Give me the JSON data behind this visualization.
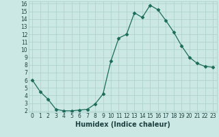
{
  "xlabel": "Humidex (Indice chaleur)",
  "x_values": [
    0,
    1,
    2,
    3,
    4,
    5,
    6,
    7,
    8,
    9,
    10,
    11,
    12,
    13,
    14,
    15,
    16,
    17,
    18,
    19,
    20,
    21,
    22,
    23
  ],
  "y_values": [
    6.0,
    4.5,
    3.5,
    2.2,
    2.0,
    2.0,
    2.1,
    2.2,
    2.9,
    4.2,
    8.5,
    11.5,
    12.0,
    14.8,
    14.2,
    15.8,
    15.2,
    13.8,
    12.3,
    10.5,
    9.0,
    8.2,
    7.8,
    7.7
  ],
  "line_color": "#1a6b5a",
  "marker": "D",
  "marker_size": 2.5,
  "bg_color": "#cce8e4",
  "grid_color": "#aacfca",
  "tick_label_color": "#1a4040",
  "ylim": [
    1.8,
    16.3
  ],
  "xlim": [
    -0.5,
    23.5
  ],
  "yticks": [
    2,
    3,
    4,
    5,
    6,
    7,
    8,
    9,
    10,
    11,
    12,
    13,
    14,
    15,
    16
  ],
  "xticks": [
    0,
    1,
    2,
    3,
    4,
    5,
    6,
    7,
    8,
    9,
    10,
    11,
    12,
    13,
    14,
    15,
    16,
    17,
    18,
    19,
    20,
    21,
    22,
    23
  ],
  "tick_fontsize": 5.5,
  "xlabel_fontsize": 7,
  "linewidth": 0.9
}
